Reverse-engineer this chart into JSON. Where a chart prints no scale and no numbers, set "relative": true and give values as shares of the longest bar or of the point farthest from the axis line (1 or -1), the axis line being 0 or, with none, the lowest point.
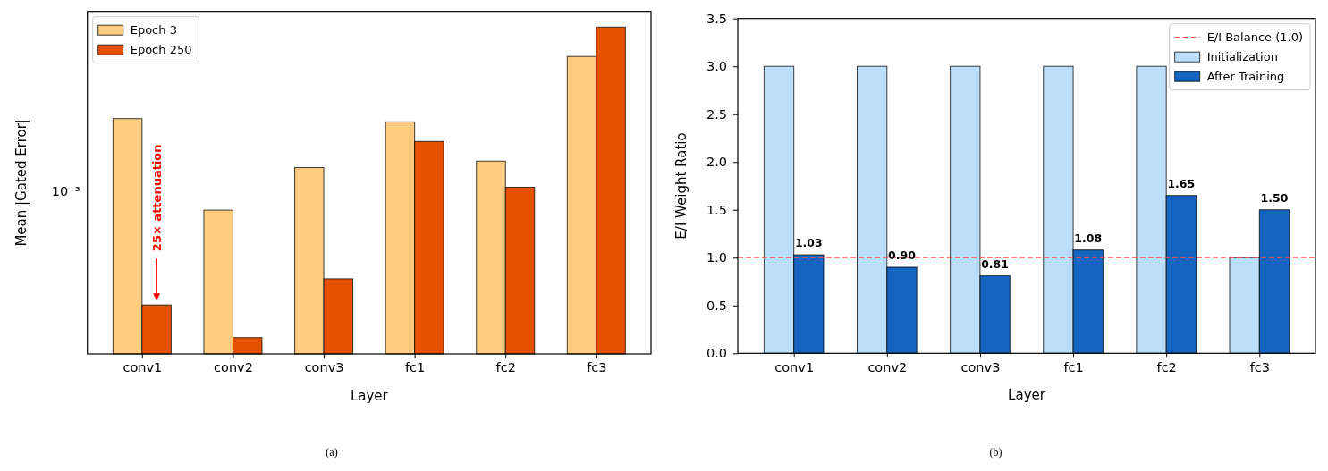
{
  "chart_data": [
    {
      "type": "bar",
      "categories": [
        "conv1",
        "conv2",
        "conv3",
        "fc1",
        "fc2",
        "fc3"
      ],
      "series": [
        {
          "name": "Epoch 3",
          "color": "#ffcc80",
          "values": [
            0.72,
            0.44,
            0.57,
            0.71,
            0.59,
            0.91
          ]
        },
        {
          "name": "Epoch 250",
          "color": "#e65100",
          "values": [
            0.15,
            0.05,
            0.23,
            0.65,
            0.51,
            1
          ]
        }
      ],
      "relative": true,
      "xlabel": "Layer",
      "ylabel": "Mean |Gated Error|",
      "legend": "top left",
      "annotations": [
        "25× attenuation",
        "10⁻³",
        "(a)"
      ]
    },
    {
      "type": "bar",
      "categories": [
        "conv1",
        "conv2",
        "conv3",
        "fc1",
        "fc2",
        "fc3"
      ],
      "series": [
        {
          "name": "Initialization",
          "color": "#bbdefb",
          "values": [
            3.0,
            3.0,
            3.0,
            3.0,
            3.0,
            1.0
          ]
        },
        {
          "name": "After Training",
          "color": "#1565c0",
          "values": [
            1.03,
            0.9,
            0.81,
            1.08,
            1.65,
            1.5
          ],
          "value_labels": [
            "1.03",
            "0.90",
            "0.81",
            "1.08",
            "1.65",
            "1.50"
          ]
        }
      ],
      "ylim": [
        0,
        3.5
      ],
      "yticks": [
        {
          "value": 0,
          "label": "0.0"
        },
        {
          "value": 0.5,
          "label": "0.5"
        },
        {
          "value": 1,
          "label": "1.0"
        },
        {
          "value": 1.5,
          "label": "1.5"
        },
        {
          "value": 2,
          "label": "2.0"
        },
        {
          "value": 2.5,
          "label": "2.5"
        },
        {
          "value": 3,
          "label": "3.0"
        },
        {
          "value": 3.5,
          "label": "3.5"
        }
      ],
      "xlabel": "Layer",
      "ylabel": "E/I Weight Ratio",
      "legend": "top right",
      "ref_lines": [
        {
          "axis": "y",
          "value": 1.0,
          "label": "E/I Balance (1.0)",
          "color": "#ff4d4d",
          "line_style": "dashed"
        }
      ],
      "annotations": [
        "(b)"
      ]
    }
  ]
}
